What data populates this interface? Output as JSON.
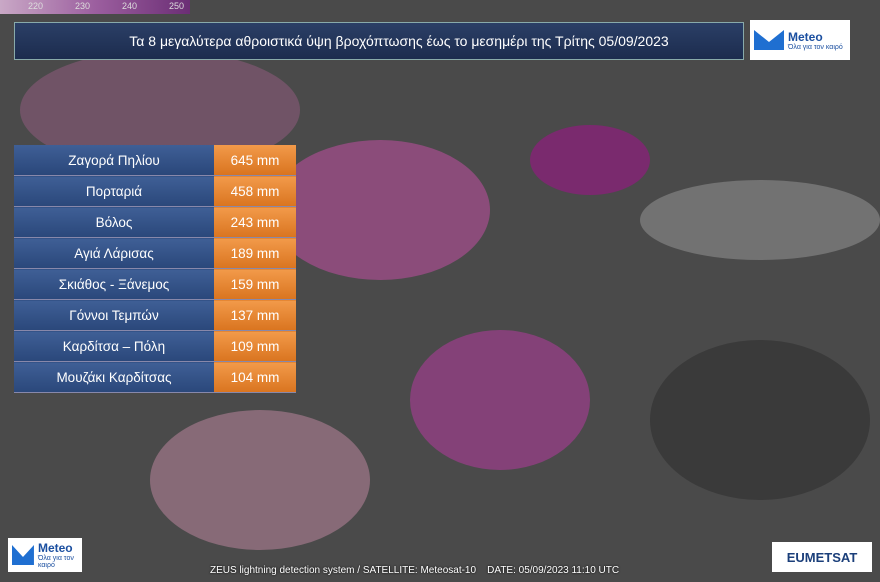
{
  "header": {
    "title": "Τα 8 μεγαλύτερα αθροιστικά ύψη βροχόπτωσης έως το μεσημέρι της Τρίτης 05/09/2023"
  },
  "scale": {
    "labels": [
      "220",
      "230",
      "240",
      "250"
    ]
  },
  "logo": {
    "name": "Meteo",
    "tagline": "Όλα για τον καιρό"
  },
  "table": {
    "rows": [
      [
        "Ζαγορά Πηλίου",
        "645 mm"
      ],
      [
        "Πορταριά",
        "458 mm"
      ],
      [
        "Βόλος",
        "243 mm"
      ],
      [
        "Αγιά Λάρισας",
        "189 mm"
      ],
      [
        "Σκιάθος - Ξάνεμος",
        "159 mm"
      ],
      [
        "Γόννοι Τεμπών",
        "137 mm"
      ],
      [
        "Καρδίτσα – Πόλη",
        "109 mm"
      ],
      [
        "Μουζάκι Καρδίτσας",
        "104 mm"
      ]
    ]
  },
  "footer": {
    "source": "ZEUS lightning detection system / SATELLITE: Meteosat-10",
    "date": "DATE: 05/09/2023 11:10 UTC",
    "eumetsat": "EUMETSAT"
  }
}
